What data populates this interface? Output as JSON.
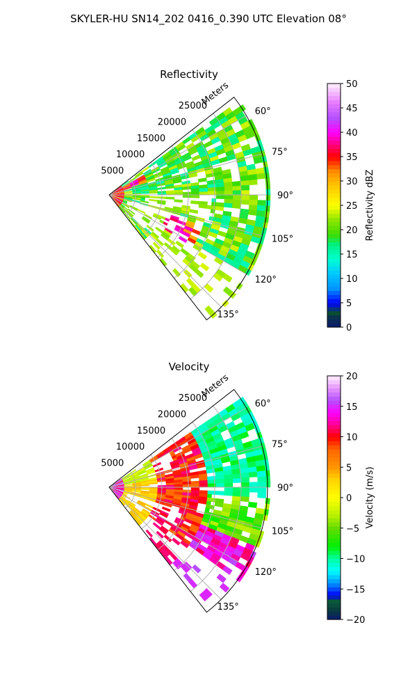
{
  "suptitle": "SKYLER-HU  SN14_202  0416_0.390 UTC Elevation 08°",
  "chart_data": [
    {
      "type": "heatmap",
      "projection": "polar-sector",
      "title": "Reflectivity",
      "radial_axis_label": "Meters",
      "radial_ticks": [
        "5000",
        "10000",
        "15000",
        "20000",
        "25000"
      ],
      "radial_tick_values": [
        5000,
        10000,
        15000,
        20000,
        25000
      ],
      "rmax": 30000,
      "angular_ticks": [
        "60°",
        "75°",
        "90°",
        "105°",
        "120°",
        "135°"
      ],
      "angular_tick_values": [
        60,
        75,
        90,
        105,
        120,
        135
      ],
      "theta_range": [
        52,
        142
      ],
      "grid": true,
      "colorbar": {
        "label": "Reflectivity dBZ",
        "range": [
          0,
          50
        ],
        "ticks": [
          "0",
          "5",
          "10",
          "15",
          "20",
          "25",
          "30",
          "35",
          "40",
          "45",
          "50"
        ],
        "tick_values": [
          0,
          5,
          10,
          15,
          20,
          25,
          30,
          35,
          40,
          45,
          50
        ],
        "stops": [
          [
            0,
            "#0a1a6e"
          ],
          [
            2,
            "#0a3050"
          ],
          [
            3,
            "#0a5030"
          ],
          [
            5,
            "#0000ff"
          ],
          [
            8,
            "#0096ff"
          ],
          [
            11,
            "#00c8ff"
          ],
          [
            14,
            "#00ffd2"
          ],
          [
            17,
            "#00f080"
          ],
          [
            19,
            "#3cdc00"
          ],
          [
            22,
            "#8ce600"
          ],
          [
            25,
            "#ffff00"
          ],
          [
            29,
            "#ffc800"
          ],
          [
            32,
            "#ff8c00"
          ],
          [
            35,
            "#ff0000"
          ],
          [
            38,
            "#ff0096"
          ],
          [
            40,
            "#ff00ff"
          ],
          [
            43,
            "#b450ff"
          ],
          [
            46,
            "#e678ff"
          ],
          [
            50,
            "#fff0ff"
          ]
        ]
      }
    },
    {
      "type": "heatmap",
      "projection": "polar-sector",
      "title": "Velocity",
      "radial_axis_label": "Meters",
      "radial_ticks": [
        "5000",
        "10000",
        "15000",
        "20000",
        "25000"
      ],
      "radial_tick_values": [
        5000,
        10000,
        15000,
        20000,
        25000
      ],
      "rmax": 30000,
      "angular_ticks": [
        "60°",
        "75°",
        "90°",
        "105°",
        "120°",
        "135°"
      ],
      "angular_tick_values": [
        60,
        75,
        90,
        105,
        120,
        135
      ],
      "theta_range": [
        52,
        142
      ],
      "grid": true,
      "colorbar": {
        "label": "Velocity (m/s)",
        "range": [
          -20,
          20
        ],
        "ticks": [
          "−20",
          "−15",
          "−10",
          "−5",
          "0",
          "5",
          "10",
          "15",
          "20"
        ],
        "tick_values": [
          -20,
          -15,
          -10,
          -5,
          0,
          5,
          10,
          15,
          20
        ],
        "stops": [
          [
            -20,
            "#0a1a6e"
          ],
          [
            -18.5,
            "#0a3a40"
          ],
          [
            -17,
            "#0a5a3a"
          ],
          [
            -16,
            "#0000ff"
          ],
          [
            -14,
            "#0096ff"
          ],
          [
            -12,
            "#00ffff"
          ],
          [
            -10,
            "#00ffa0"
          ],
          [
            -8,
            "#00f000"
          ],
          [
            -5,
            "#64dc00"
          ],
          [
            -3,
            "#b4f000"
          ],
          [
            0,
            "#ffff00"
          ],
          [
            3,
            "#ffd200"
          ],
          [
            5,
            "#ff9600"
          ],
          [
            8,
            "#ff6400"
          ],
          [
            10,
            "#ff0000"
          ],
          [
            12,
            "#ff0096"
          ],
          [
            14,
            "#ff00ff"
          ],
          [
            16,
            "#b450ff"
          ],
          [
            18,
            "#e696ff"
          ],
          [
            20,
            "#fff0ff"
          ]
        ]
      }
    }
  ]
}
